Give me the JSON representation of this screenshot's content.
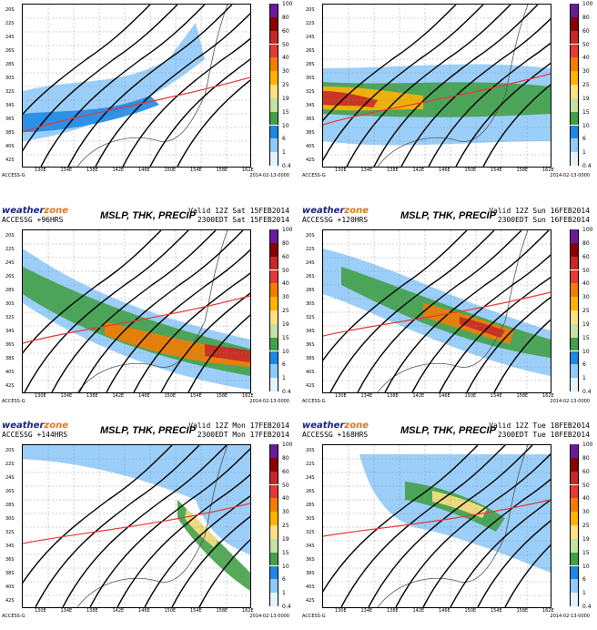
{
  "brand": {
    "part1": "weather",
    "part2": "zone"
  },
  "product_title": "MSLP, THK, PRECIP",
  "footer_left": "ACCESS-G",
  "footer_right": "2014-02-13-0000",
  "lon_labels": [
    "130E",
    "134E",
    "138E",
    "142E",
    "146E",
    "150E",
    "154E",
    "158E",
    "162E"
  ],
  "lat_labels": [
    "20S",
    "22S",
    "24S",
    "26S",
    "28S",
    "30S",
    "32S",
    "34S",
    "36S",
    "38S",
    "40S",
    "42S"
  ],
  "colorbar": {
    "labels": [
      "100",
      "80",
      "60",
      "50",
      "40",
      "30",
      "25",
      "19",
      "15",
      "10",
      "6",
      "1",
      "0.4"
    ],
    "colors": [
      "#6a1b9a",
      "#8b0000",
      "#c62828",
      "#e53935",
      "#f57c00",
      "#ffb300",
      "#ffe082",
      "#c5e1a5",
      "#43a047",
      "#1e88e5",
      "#90caf9",
      "#e3f2fd"
    ]
  },
  "panels": [
    {
      "model": "",
      "valid_line1": "",
      "valid_line2": ""
    },
    {
      "model": "",
      "valid_line1": "",
      "valid_line2": ""
    },
    {
      "model": "ACCESSG +96HRS",
      "valid_line1": "Valid 12Z Sat 15FEB2014",
      "valid_line2": "2300EDT Sat 15FEB2014"
    },
    {
      "model": "ACCESSG +120HRS",
      "valid_line1": "Valid 12Z Sun 16FEB2014",
      "valid_line2": "2300EDT Sun 16FEB2014"
    },
    {
      "model": "ACCESSG +144HRS",
      "valid_line1": "Valid 12Z Mon 17FEB2014",
      "valid_line2": "2300EDT Mon 17FEB2014"
    },
    {
      "model": "ACCESSG +168HRS",
      "valid_line1": "Valid 12Z Tue 18FEB2014",
      "valid_line2": "2300EDT Tue 18FEB2014"
    }
  ]
}
